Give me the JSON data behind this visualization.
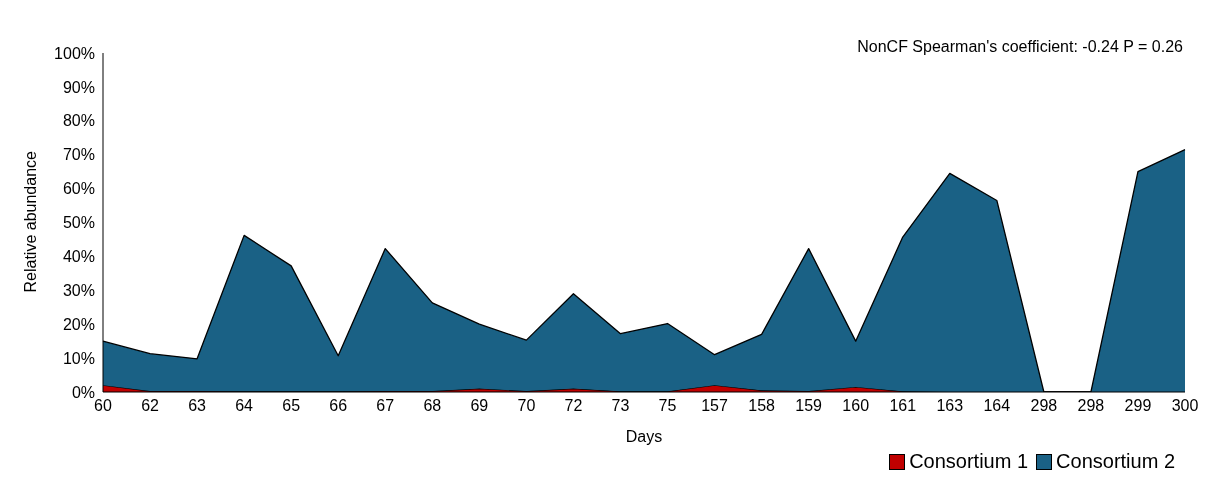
{
  "chart_data": {
    "type": "area",
    "xlabel": "Days",
    "ylabel": "Relative abundance",
    "annotations": [
      "NonCF  Spearman's coefficient: -0.24  P = 0.26"
    ],
    "categories": [
      "60",
      "62",
      "63",
      "64",
      "65",
      "66",
      "67",
      "68",
      "69",
      "70",
      "72",
      "73",
      "75",
      "157",
      "158",
      "159",
      "160",
      "161",
      "163",
      "164",
      "298",
      "298",
      "299",
      "300"
    ],
    "stacked": true,
    "series": [
      {
        "name": "Consortium 1",
        "color": "#c00000",
        "values": [
          2,
          0.3,
          0.3,
          0.2,
          0.2,
          0.2,
          0.3,
          0.3,
          1,
          0.3,
          1,
          0.2,
          0.2,
          2,
          0.5,
          0.3,
          1.5,
          0.2,
          0,
          0,
          0,
          0,
          0,
          0
        ]
      },
      {
        "name": "Consortium 2",
        "color": "#1a6185",
        "values": [
          13,
          11,
          9.5,
          46,
          37,
          10.5,
          42,
          26,
          19,
          15,
          28,
          17,
          20,
          9,
          16.5,
          42,
          13.5,
          45.5,
          64.5,
          56.5,
          0,
          0,
          65,
          71.5
        ]
      }
    ],
    "ylim": [
      0,
      100
    ],
    "yticks": [
      {
        "value": 0,
        "label": "0%"
      },
      {
        "value": 10,
        "label": "10%"
      },
      {
        "value": 20,
        "label": "20%"
      },
      {
        "value": 30,
        "label": "30%"
      },
      {
        "value": 40,
        "label": "40%"
      },
      {
        "value": 50,
        "label": "50%"
      },
      {
        "value": 60,
        "label": "60%"
      },
      {
        "value": 70,
        "label": "70%"
      },
      {
        "value": 80,
        "label": "80%"
      },
      {
        "value": 90,
        "label": "90%"
      },
      {
        "value": 100,
        "label": "100%"
      }
    ],
    "legend": "bottom right"
  }
}
